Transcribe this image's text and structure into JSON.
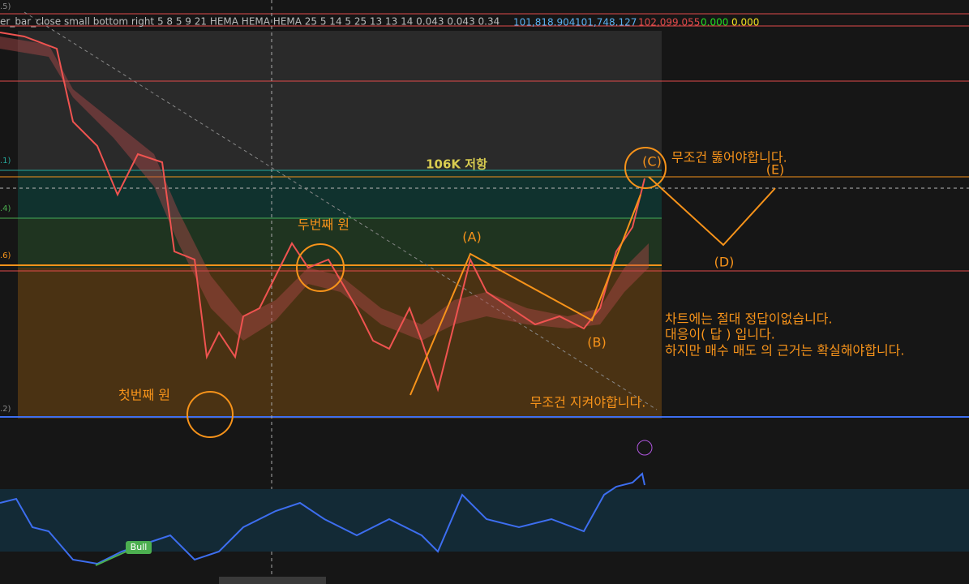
{
  "header": {
    "indicator": "er_bar_close small bottom right 5 8 5 9 21 HEMA HEMA HEMA 25 5 14 5 25 13 13 14 0.043 0.043 0.34",
    "values": [
      "101,818.904",
      "101,748.127",
      "102,099.055",
      "0.000",
      "0.000"
    ]
  },
  "levels": [
    ".5)",
    ".1)",
    ".4)",
    ".6)",
    ".2)"
  ],
  "annotations": {
    "resistance": "106K 저항",
    "must_break": "무조건 뚫어야합니다.",
    "c": "(C)",
    "e": "(E)",
    "d": "(D)",
    "a": "(A)",
    "b": "(B)",
    "second_circle": "두번째 원",
    "first_circle": "첫번째 원",
    "must_hold": "무조건 지켜야합니다.",
    "notes": [
      "차트에는 절대 정답이없습니다.",
      "대응이( 답 ) 입니다.",
      "하지만 매수 매도 의 근거는 확실해야합니다."
    ]
  },
  "badge": "Bull"
}
